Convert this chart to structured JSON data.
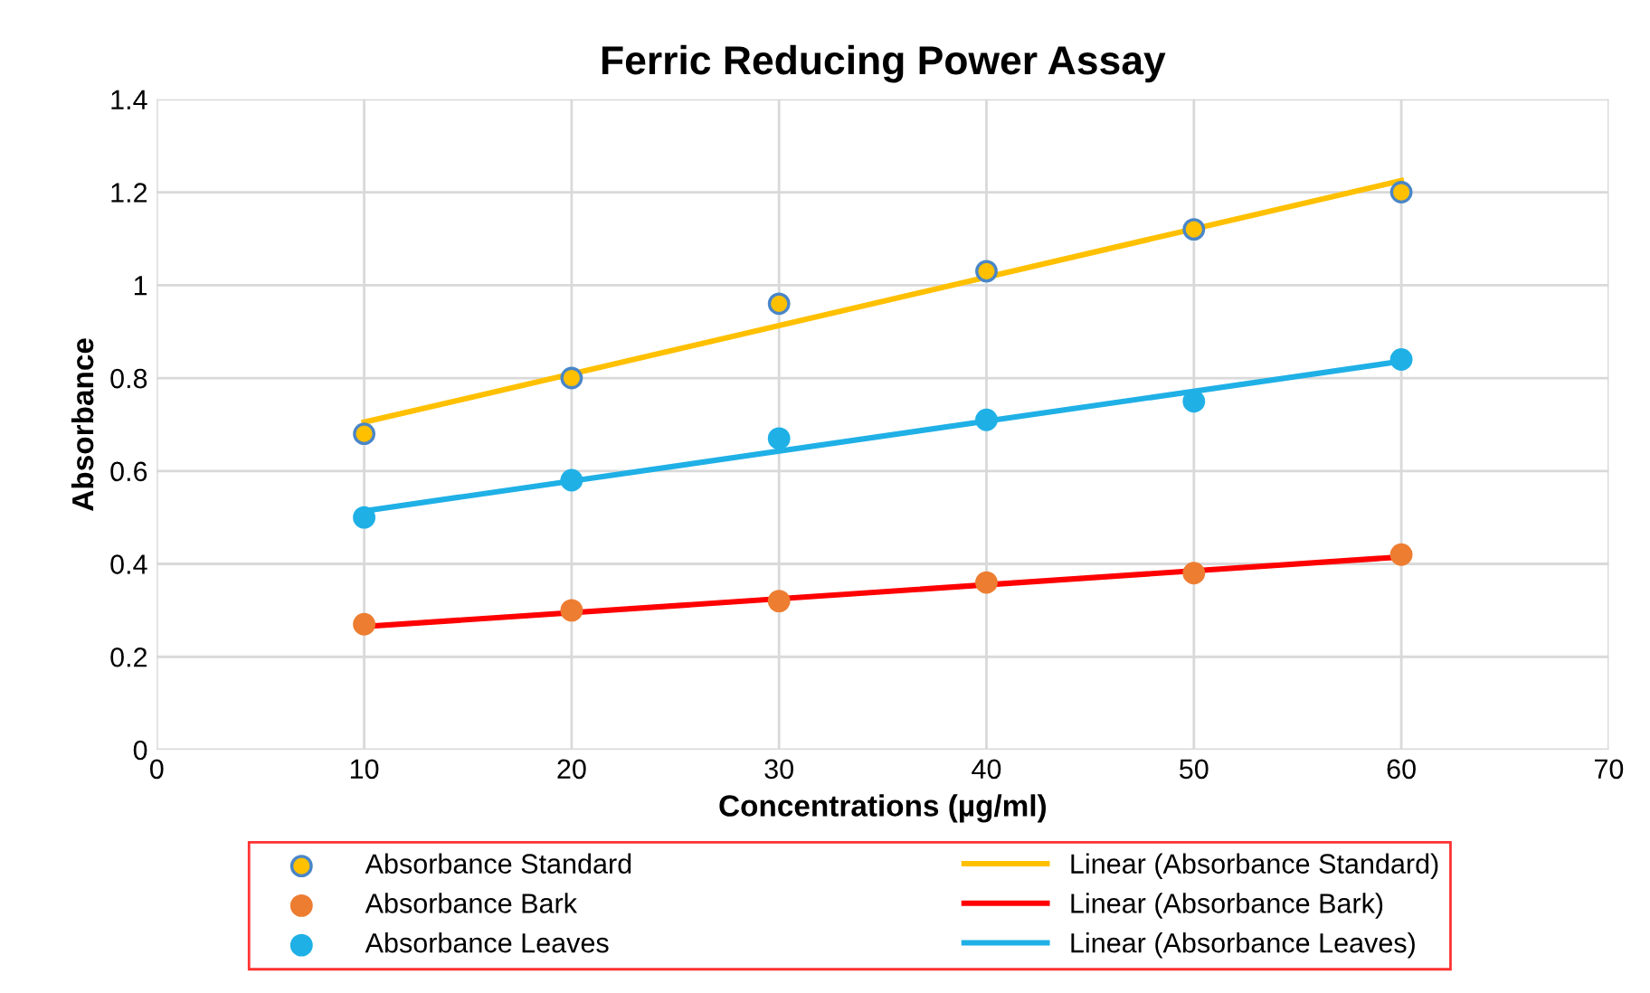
{
  "chart_data": {
    "type": "scatter",
    "title": "Ferric Reducing Power Assay",
    "xlabel": "Concentrations (µg/ml)",
    "ylabel": "Absorbance",
    "xlim": [
      0,
      70
    ],
    "xticks": [
      0,
      10,
      20,
      30,
      40,
      50,
      60,
      70
    ],
    "ylim": [
      0,
      1.4
    ],
    "yticks": [
      0,
      0.2,
      0.4,
      0.6,
      0.8,
      1,
      1.2,
      1.4
    ],
    "grid": true,
    "legend": "bottom",
    "series": [
      {
        "name": "Absorbance Standard",
        "marker": "circle",
        "color": "#ffc000",
        "x": [
          10,
          20,
          30,
          40,
          50,
          60
        ],
        "values": [
          0.68,
          0.8,
          0.96,
          1.03,
          1.12,
          1.2
        ]
      },
      {
        "name": "Absorbance Bark",
        "marker": "circle",
        "color": "#ed7d31",
        "x": [
          10,
          20,
          30,
          40,
          50,
          60
        ],
        "values": [
          0.27,
          0.3,
          0.32,
          0.36,
          0.38,
          0.42
        ]
      },
      {
        "name": "Absorbance Leaves",
        "marker": "circle",
        "color": "#1fb0e6",
        "x": [
          10,
          20,
          30,
          40,
          50,
          60
        ],
        "values": [
          0.5,
          0.58,
          0.67,
          0.71,
          0.75,
          0.84
        ]
      },
      {
        "name": "Linear (Absorbance Standard)",
        "type": "line",
        "line_style": "solid",
        "color": "#ffc000",
        "x": [
          10,
          60
        ],
        "values": [
          0.705,
          1.225
        ]
      },
      {
        "name": "Linear (Absorbance Bark)",
        "type": "line",
        "line_style": "solid",
        "color": "#ff0000",
        "x": [
          10,
          60
        ],
        "values": [
          0.265,
          0.415
        ]
      },
      {
        "name": "Linear (Absorbance Leaves)",
        "type": "line",
        "line_style": "solid",
        "color": "#1fb0e6",
        "x": [
          10,
          60
        ],
        "values": [
          0.514,
          0.836
        ]
      }
    ]
  }
}
